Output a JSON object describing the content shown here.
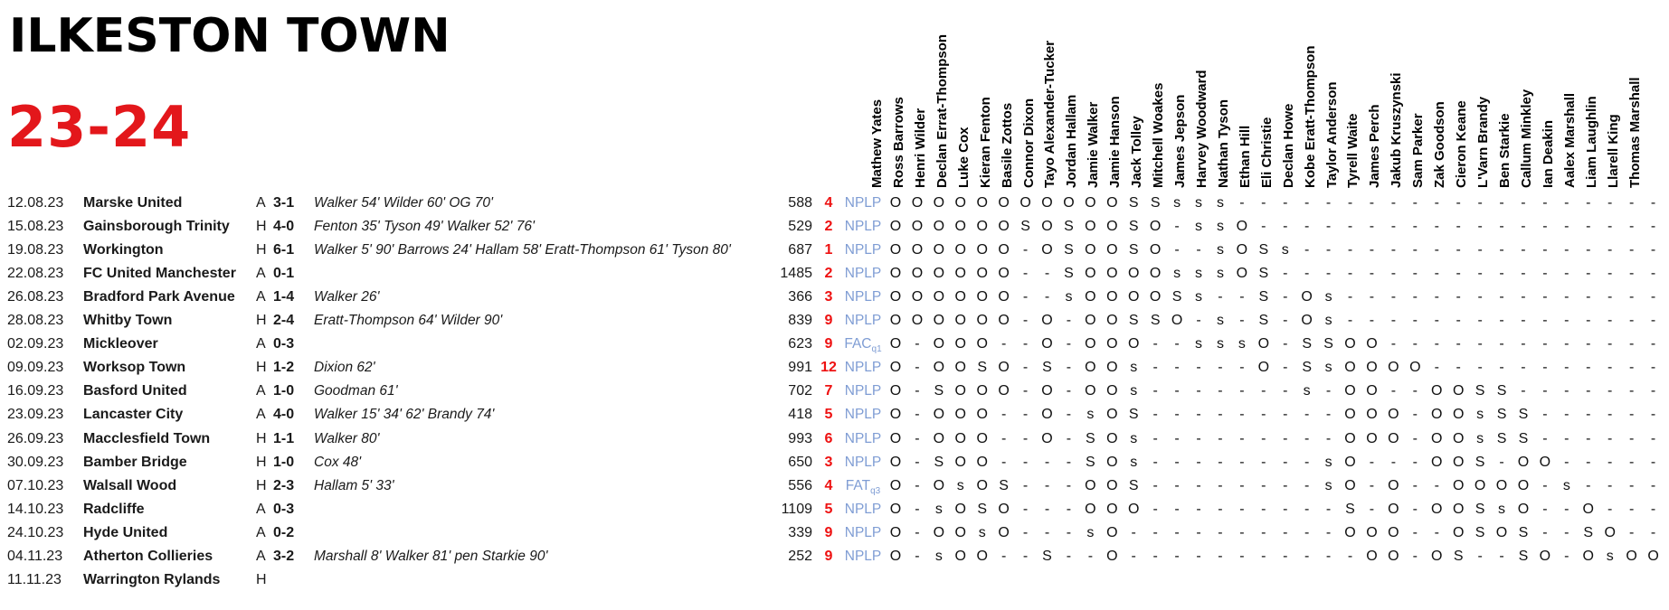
{
  "header": {
    "club": "ILKESTON TOWN",
    "season": "23-24"
  },
  "colors": {
    "season_red": "#e3171b",
    "stat_number_red": "#ee1111",
    "competition_blue": "#7f9dd4",
    "text_black": "#000000"
  },
  "appearance_symbols": {
    "started": "O",
    "substitute_capital": "S",
    "substitute_small": "s",
    "not_in_squad": "-"
  },
  "players": [
    "Mathew Yates",
    "Ross Barrows",
    "Henri Wilder",
    "Declan Errat-Thompson",
    "Luke Cox",
    "Kieran Fenton",
    "Basile Zottos",
    "Connor Dixon",
    "Tayo Alexander-Tucker",
    "Jordan Hallam",
    "Jamie Walker",
    "Jamie Hanson",
    "Jack Tolley",
    "Mitchell Woakes",
    "James Jepson",
    "Harvey Woodward",
    "Nathan Tyson",
    "Ethan Hill",
    "Eli Christie",
    "Declan Howe",
    "Kobe Eratt-Thompson",
    "Taylor Anderson",
    "Tyrell Waite",
    "James Perch",
    "Jakub Kruszynski",
    "Sam Parker",
    "Zak Goodson",
    "Cieron Keane",
    "L'Varn Brandy",
    "Ben Starkie",
    "Callum Minkley",
    "Ian Deakin",
    "Aalex Marshall",
    "Liam Laughlin",
    "Llarell King",
    "Thomas Marshall"
  ],
  "matches": [
    {
      "date": "12.08.23",
      "opponent": "Marske United",
      "venue": "A",
      "score": "3-1",
      "scorers": "Walker 54' Wilder 60' OG 70'",
      "attendance": "588",
      "number": "4",
      "competition": "NPLP",
      "competition_sub": "",
      "apps": "OOOOOOOOOOOSSsss--------------------"
    },
    {
      "date": "15.08.23",
      "opponent": "Gainsborough Trinity",
      "venue": "H",
      "score": "4-0",
      "scorers": "Fenton 35' Tyson 49' Walker 52' 76'",
      "attendance": "529",
      "number": "2",
      "competition": "NPLP",
      "competition_sub": "",
      "apps": "OOOOOOSOSOOSO-ssO-------------------"
    },
    {
      "date": "19.08.23",
      "opponent": "Workington",
      "venue": "H",
      "score": "6-1",
      "scorers": "Walker 5' 90' Barrows 24' Hallam 58' Eratt-Thompson 61' Tyson 80'",
      "attendance": "687",
      "number": "1",
      "competition": "NPLP",
      "competition_sub": "",
      "apps": "OOOOOO-OSOOSO--sOSs-----------------"
    },
    {
      "date": "22.08.23",
      "opponent": "FC United Manchester",
      "venue": "A",
      "score": "0-1",
      "scorers": "",
      "attendance": "1485",
      "number": "2",
      "competition": "NPLP",
      "competition_sub": "",
      "apps": "OOOOOO--SOOOOsssOS------------------"
    },
    {
      "date": "26.08.23",
      "opponent": "Bradford Park Avenue",
      "venue": "A",
      "score": "1-4",
      "scorers": "Walker 26'",
      "attendance": "366",
      "number": "3",
      "competition": "NPLP",
      "competition_sub": "",
      "apps": "OOOOOO--sOOOOSs--S-Os---------------"
    },
    {
      "date": "28.08.23",
      "opponent": "Whitby Town",
      "venue": "H",
      "score": "2-4",
      "scorers": "Eratt-Thompson 64' Wilder 90'",
      "attendance": "839",
      "number": "9",
      "competition": "NPLP",
      "competition_sub": "",
      "apps": "OOOOOO-O-OOSSO-s-S-Os---------------"
    },
    {
      "date": "02.09.23",
      "opponent": "Mickleover",
      "venue": "A",
      "score": "0-3",
      "scorers": "",
      "attendance": "623",
      "number": "9",
      "competition": "FAC",
      "competition_sub": "q1",
      "apps": "O-OOO--O-OOO--sssO-SSOO-------------"
    },
    {
      "date": "09.09.23",
      "opponent": "Worksop Town",
      "venue": "H",
      "score": "1-2",
      "scorers": "Dixion 62'",
      "attendance": "991",
      "number": "12",
      "competition": "NPLP",
      "competition_sub": "",
      "apps": "O-OOSO-S-OOs-----O-SsOOOO-----------"
    },
    {
      "date": "16.09.23",
      "opponent": "Basford United",
      "venue": "A",
      "score": "1-0",
      "scorers": "Goodman 61'",
      "attendance": "702",
      "number": "7",
      "competition": "NPLP",
      "competition_sub": "",
      "apps": "O-SOOO-O-OOs-------s-OO--OOSS-------"
    },
    {
      "date": "23.09.23",
      "opponent": "Lancaster City",
      "venue": "A",
      "score": "4-0",
      "scorers": "Walker 15' 34' 62' Brandy 74'",
      "attendance": "418",
      "number": "5",
      "competition": "NPLP",
      "competition_sub": "",
      "apps": "O-OOO--O-sOS---------OOO-OOsSS------"
    },
    {
      "date": "26.09.23",
      "opponent": "Macclesfield Town",
      "venue": "H",
      "score": "1-1",
      "scorers": "Walker 80'",
      "attendance": "993",
      "number": "6",
      "competition": "NPLP",
      "competition_sub": "",
      "apps": "O-OOO--O-SOs---------OOO-OOsSS------"
    },
    {
      "date": "30.09.23",
      "opponent": "Bamber Bridge",
      "venue": "H",
      "score": "1-0",
      "scorers": "Cox 48'",
      "attendance": "650",
      "number": "3",
      "competition": "NPLP",
      "competition_sub": "",
      "apps": "O-SOO----SOs--------sO---OOS-OO-----"
    },
    {
      "date": "07.10.23",
      "opponent": "Walsall Wood",
      "venue": "H",
      "score": "2-3",
      "scorers": "Hallam 5' 33'",
      "attendance": "556",
      "number": "4",
      "competition": "FAT",
      "competition_sub": "q3",
      "apps": "O-OsOS---OOS--------sO-O--OOOO-s----"
    },
    {
      "date": "14.10.23",
      "opponent": "Radcliffe",
      "venue": "A",
      "score": "0-3",
      "scorers": "",
      "attendance": "1109",
      "number": "5",
      "competition": "NPLP",
      "competition_sub": "",
      "apps": "O-sOSO---OOO---------S-O-OOSsO--O---"
    },
    {
      "date": "24.10.23",
      "opponent": "Hyde United",
      "venue": "A",
      "score": "0-2",
      "scorers": "",
      "attendance": "339",
      "number": "9",
      "competition": "NPLP",
      "competition_sub": "",
      "apps": "O-OOsO---sO----------OOO--OSOS--SO--"
    },
    {
      "date": "04.11.23",
      "opponent": "Atherton Collieries",
      "venue": "A",
      "score": "3-2",
      "scorers": "Marshall 8' Walker 81' pen Starkie 90'",
      "attendance": "252",
      "number": "9",
      "competition": "NPLP",
      "competition_sub": "",
      "apps": "O-sOO--S--O-----------OO-OS--SO-OsOO"
    },
    {
      "date": "11.11.23",
      "opponent": "Warrington Rylands",
      "venue": "H",
      "score": "",
      "scorers": "",
      "attendance": "",
      "number": "",
      "competition": "",
      "competition_sub": "",
      "apps": ""
    }
  ]
}
